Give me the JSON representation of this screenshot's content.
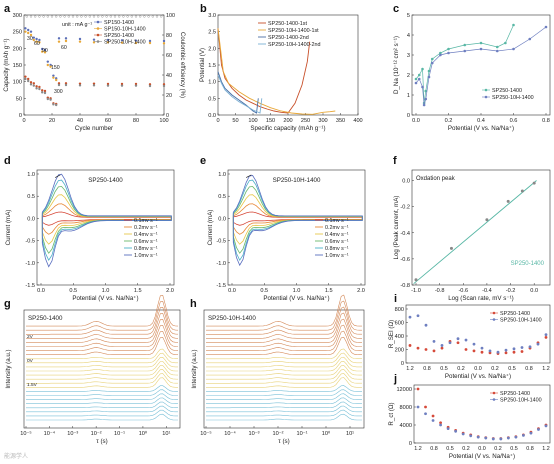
{
  "chart_data": [
    {
      "panel": "a",
      "type": "scatter",
      "xlabel": "Cycle number",
      "ylabel": "Capacity (mAh g⁻¹)",
      "y2label": "Coulombic efficiency (%)",
      "xlim": [
        0,
        100
      ],
      "ylim": [
        0,
        300
      ],
      "y2lim": [
        0,
        100
      ],
      "xticks": [
        0,
        20,
        40,
        60,
        80,
        100
      ],
      "yticks": [
        0,
        50,
        100,
        150,
        200,
        250,
        300
      ],
      "y2ticks": [
        0,
        20,
        40,
        60,
        80,
        100
      ],
      "annotations": [
        "unit : mA g⁻¹",
        "30",
        "60",
        "90",
        "150",
        "300",
        "60"
      ],
      "series": [
        {
          "name": "SP150-1400",
          "color": "#5b6fb8",
          "x": [
            1,
            3,
            5,
            7,
            9,
            11,
            13,
            15,
            17,
            19,
            21,
            23,
            25,
            30,
            40,
            50,
            60,
            70,
            80,
            90,
            100
          ],
          "values": [
            260,
            255,
            250,
            232,
            228,
            225,
            198,
            195,
            160,
            150,
            118,
            110,
            230,
            230,
            228,
            226,
            225,
            224,
            223,
            222,
            222
          ]
        },
        {
          "name": "SP150-10H-1400",
          "color": "#e8a838",
          "x": [
            1,
            3,
            5,
            7,
            9,
            11,
            13,
            15,
            17,
            19,
            21,
            23,
            25,
            30,
            40,
            50,
            60,
            70,
            80,
            90,
            100
          ],
          "values": [
            250,
            246,
            240,
            225,
            220,
            218,
            190,
            188,
            150,
            145,
            112,
            105,
            220,
            222,
            220,
            218,
            218,
            217,
            216,
            216,
            215
          ]
        },
        {
          "name": "SP250-1400",
          "color": "#c8502a",
          "x": [
            1,
            3,
            5,
            7,
            9,
            11,
            13,
            15,
            17,
            19,
            21,
            23,
            25,
            30,
            40,
            50,
            60,
            70,
            80,
            90,
            100
          ],
          "values": [
            115,
            108,
            98,
            95,
            86,
            84,
            74,
            72,
            52,
            50,
            35,
            33,
            95,
            95,
            94,
            94,
            93,
            93,
            93,
            92,
            92
          ]
        },
        {
          "name": "SP250-10H-1400",
          "color": "#8a8a8a",
          "x": [
            1,
            3,
            5,
            7,
            9,
            11,
            13,
            15,
            17,
            19,
            21,
            23,
            25,
            30,
            40,
            50,
            60,
            70,
            80,
            90,
            100
          ],
          "values": [
            108,
            102,
            92,
            88,
            80,
            78,
            68,
            66,
            48,
            46,
            32,
            30,
            90,
            90,
            89,
            89,
            88,
            88,
            88,
            87,
            87
          ]
        }
      ]
    },
    {
      "panel": "b",
      "type": "line",
      "xlabel": "Specific capacity (mAh g⁻¹)",
      "ylabel": "Potential (V)",
      "xlim": [
        0,
        400
      ],
      "ylim": [
        0,
        3.0
      ],
      "xticks": [
        0,
        50,
        100,
        150,
        200,
        250,
        300,
        350,
        400
      ],
      "yticks": [
        0,
        0.5,
        1.0,
        1.5,
        2.0,
        2.5,
        3.0
      ],
      "series": [
        {
          "name": "SP250-1400-1st",
          "color": "#c8502a",
          "x": [
            0,
            10,
            20,
            40,
            60,
            80,
            100,
            120,
            140,
            160,
            180,
            200,
            220,
            240,
            255,
            262
          ],
          "y": [
            2.6,
            1.5,
            1.1,
            0.8,
            0.6,
            0.45,
            0.35,
            0.25,
            0.18,
            0.12,
            0.08,
            0.06,
            0.35,
            0.9,
            1.6,
            2.2
          ]
        },
        {
          "name": "SP250-10H-1400-1st",
          "color": "#e8a838",
          "x": [
            0,
            15,
            30,
            60,
            90,
            120,
            150,
            180,
            210,
            240,
            270,
            300,
            320,
            335
          ],
          "y": [
            2.6,
            1.3,
            0.95,
            0.7,
            0.5,
            0.35,
            0.22,
            0.12,
            0.06,
            0.03,
            0.02,
            0.08,
            0.1,
            0.12
          ]
        },
        {
          "name": "SP250-1400-2nd",
          "color": "#4a6fa5",
          "x": [
            0,
            10,
            20,
            40,
            60,
            80,
            100,
            110,
            115
          ],
          "y": [
            1.3,
            1.0,
            0.8,
            0.6,
            0.45,
            0.3,
            0.12,
            0.06,
            0.5
          ]
        },
        {
          "name": "SP250-10H-1400-2nd",
          "color": "#7ab0d4",
          "x": [
            0,
            10,
            20,
            40,
            60,
            80,
            100,
            120,
            125
          ],
          "y": [
            1.2,
            0.95,
            0.75,
            0.55,
            0.4,
            0.28,
            0.15,
            0.06,
            0.5
          ]
        }
      ]
    },
    {
      "panel": "c",
      "type": "line",
      "xlabel": "Potential (V vs. Na/Na⁺)",
      "ylabel": "D_Na (10⁻¹² cm² s⁻¹)",
      "xlim": [
        0,
        0.8
      ],
      "ylim": [
        0,
        5
      ],
      "xticks": [
        0,
        0.2,
        0.4,
        0.6,
        0.8
      ],
      "yticks": [
        0,
        1,
        2,
        3,
        4,
        5
      ],
      "series": [
        {
          "name": "SP250-1400",
          "color": "#58b7a5",
          "x": [
            0.0,
            0.02,
            0.04,
            0.05,
            0.06,
            0.08,
            0.1,
            0.15,
            0.2,
            0.3,
            0.4,
            0.5,
            0.55,
            0.6
          ],
          "y": [
            1.8,
            2.0,
            2.3,
            0.6,
            1.2,
            2.2,
            2.8,
            3.1,
            3.3,
            3.5,
            3.6,
            3.4,
            3.6,
            4.5
          ]
        },
        {
          "name": "SP250-10H-1400",
          "color": "#6e7fc0",
          "x": [
            0.0,
            0.02,
            0.04,
            0.05,
            0.06,
            0.08,
            0.1,
            0.15,
            0.2,
            0.3,
            0.4,
            0.5,
            0.6,
            0.7,
            0.8
          ],
          "y": [
            1.6,
            1.8,
            1.4,
            0.5,
            0.8,
            1.9,
            2.6,
            3.0,
            3.1,
            3.2,
            3.3,
            3.2,
            3.3,
            3.8,
            4.4
          ]
        }
      ]
    },
    {
      "panel": "d",
      "type": "line",
      "title": "SP250-1400",
      "xlabel": "Potential (V vs. Na/Na⁺)",
      "ylabel": "Current (mA)",
      "xlim": [
        0,
        2.0
      ],
      "ylim": [
        -1.5,
        1.0
      ],
      "xticks": [
        0.0,
        0.5,
        1.0,
        1.5,
        2.0
      ],
      "yticks": [
        -1.5,
        -1.0,
        -0.5,
        0.0,
        0.5,
        1.0
      ],
      "series_names": [
        "0.1mv s⁻¹",
        "0.2mv s⁻¹",
        "0.4mv s⁻¹",
        "0.6mv s⁻¹",
        "0.8mv s⁻¹",
        "1.0mv s⁻¹"
      ],
      "peak_currents": [
        0.12,
        0.3,
        0.5,
        0.68,
        0.82,
        0.95
      ],
      "colors": [
        "#d64a3a",
        "#e88a3a",
        "#e8c84a",
        "#6ab86a",
        "#4ab0c8",
        "#5a6fc0"
      ]
    },
    {
      "panel": "e",
      "type": "line",
      "title": "SP250-10H-1400",
      "xlabel": "Potential (V vs. Na/Na⁺)",
      "ylabel": "Current (mA)",
      "xlim": [
        0,
        2.0
      ],
      "ylim": [
        -1.5,
        1.0
      ],
      "xticks": [
        0.0,
        0.5,
        1.0,
        1.5,
        2.0
      ],
      "yticks": [
        -1.5,
        -1.0,
        -0.5,
        0.0,
        0.5,
        1.0
      ],
      "series_names": [
        "0.1mv s⁻¹",
        "0.2mv s⁻¹",
        "0.4mv s⁻¹",
        "0.6mv s⁻¹",
        "0.8mv s⁻¹",
        "1.0mv s⁻¹"
      ],
      "peak_currents": [
        0.12,
        0.3,
        0.5,
        0.68,
        0.82,
        0.92
      ],
      "colors": [
        "#d64a3a",
        "#e88a3a",
        "#e8c84a",
        "#6ab86a",
        "#4ab0c8",
        "#5a6fc0"
      ]
    },
    {
      "panel": "f",
      "type": "scatter",
      "title": "Oxdation peak",
      "xlabel": "Log (Scan rate, mV s⁻¹)",
      "ylabel": "Log (Peak current, mA)",
      "xlim": [
        -1.0,
        0.1
      ],
      "ylim": [
        -0.8,
        0.05
      ],
      "xticks": [
        -1.0,
        -0.8,
        -0.6,
        -0.4,
        -0.2,
        0.0
      ],
      "yticks": [
        -0.8,
        -0.6,
        -0.4,
        -0.2,
        0.0
      ],
      "series": [
        {
          "name": "SP250-1400",
          "color": "#58b7a5",
          "x": [
            -1.0,
            -0.7,
            -0.4,
            -0.22,
            -0.1,
            0.0
          ],
          "y": [
            -0.76,
            -0.52,
            -0.3,
            -0.16,
            -0.08,
            -0.02
          ]
        }
      ]
    },
    {
      "panel": "g",
      "type": "line",
      "title": "SP250-1400",
      "xlabel": "τ (s)",
      "ylabel": "Intensity (a.u.)",
      "xlog": true,
      "xticks": [
        "10⁻⁵",
        "10⁻⁴",
        "10⁻³",
        "10⁻²",
        "10⁻¹",
        "10⁰",
        "10¹"
      ],
      "stack_labels": [
        "2V",
        "0V",
        "1.5V"
      ],
      "peak_positions_log10": [
        -2.0,
        0.8
      ]
    },
    {
      "panel": "h",
      "type": "line",
      "title": "SP250-10H-1400",
      "xlabel": "τ (s)",
      "ylabel": "Intensity (a.u.)",
      "xlog": true,
      "xticks": [
        "10⁻⁵",
        "10⁻⁴",
        "10⁻³",
        "10⁻²",
        "10⁻¹",
        "10⁰",
        "10¹"
      ],
      "peak_positions_log10": [
        -2.0,
        0.7
      ]
    },
    {
      "panel": "i",
      "type": "scatter",
      "xlabel": "Potential (V vs. Na/Na⁺)",
      "ylabel": "R_SEI (Ω)",
      "xtick_labels": [
        "1.2",
        "0.8",
        "0.5",
        "0.2",
        "0.0",
        "0.2",
        "0.5",
        "0.8",
        "1.2"
      ],
      "ylim": [
        0,
        800
      ],
      "yticks": [
        0,
        200,
        400,
        600,
        800
      ],
      "series": [
        {
          "name": "SP250-1400",
          "color": "#d64a3a",
          "values": [
            260,
            220,
            200,
            180,
            220,
            320,
            300,
            200,
            180,
            160,
            150,
            140,
            150,
            160,
            170,
            220,
            300,
            380
          ]
        },
        {
          "name": "SP250-10H-1400",
          "color": "#6e7fc0",
          "values": [
            680,
            700,
            560,
            320,
            260,
            300,
            360,
            340,
            280,
            220,
            180,
            160,
            190,
            210,
            230,
            240,
            280,
            420
          ]
        }
      ]
    },
    {
      "panel": "j",
      "type": "scatter",
      "xlabel": "Potential (V vs. Na/Na⁺)",
      "ylabel": "R_ct (Ω)",
      "xtick_labels": [
        "1.2",
        "0.8",
        "0.5",
        "0.2",
        "0.0",
        "0.2",
        "0.5",
        "0.8",
        "1.2"
      ],
      "ylim": [
        0,
        12000
      ],
      "yticks": [
        0,
        4000,
        8000,
        12000
      ],
      "series": [
        {
          "name": "SP250-1400",
          "color": "#d64a3a",
          "values": [
            12000,
            8000,
            6000,
            4500,
            3500,
            2800,
            2200,
            1800,
            1400,
            1200,
            1000,
            1000,
            1200,
            1400,
            1800,
            2400,
            3200,
            4000
          ]
        },
        {
          "name": "SP250-10H-1400",
          "color": "#6e7fc0",
          "values": [
            8000,
            6500,
            5000,
            4000,
            3200,
            2600,
            2000,
            1600,
            1300,
            1100,
            900,
            900,
            1100,
            1300,
            1700,
            2200,
            3000,
            3800
          ]
        }
      ]
    }
  ],
  "panel_letters": [
    "a",
    "b",
    "c",
    "d",
    "e",
    "f",
    "g",
    "h",
    "i",
    "j"
  ],
  "watermark": "能源学人"
}
